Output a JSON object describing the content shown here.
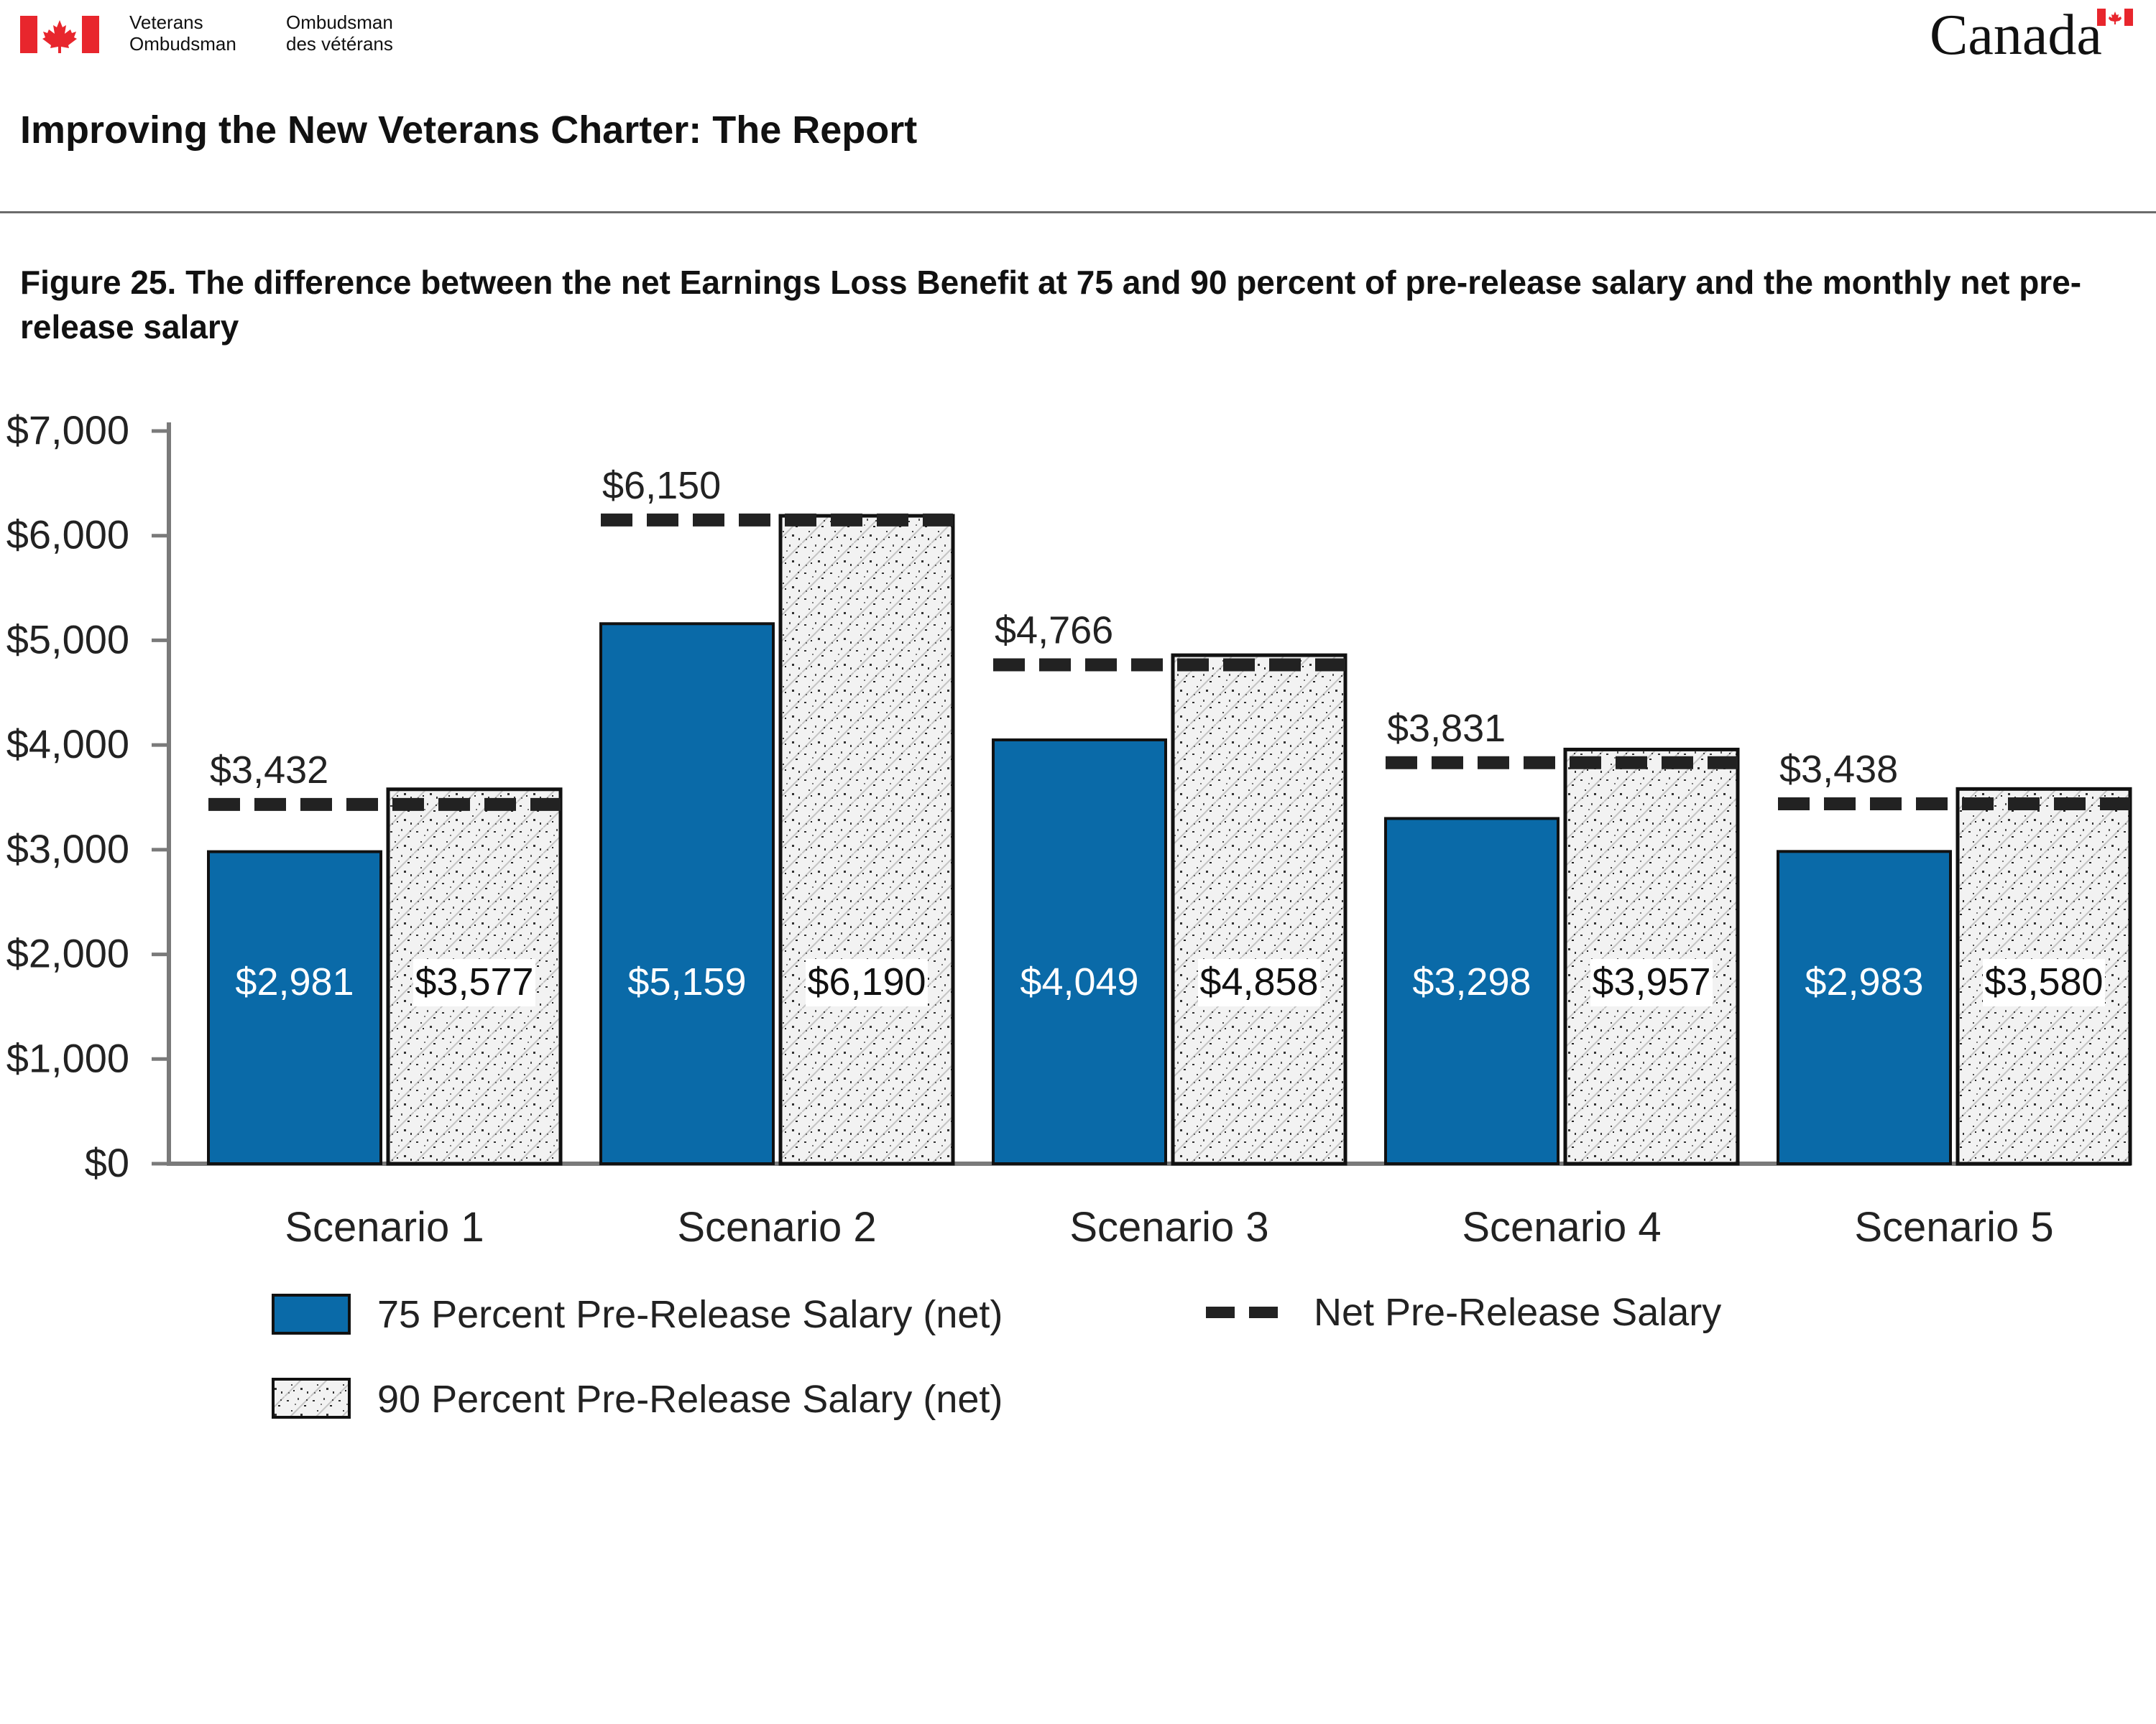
{
  "header": {
    "org_en_line1": "Veterans",
    "org_en_line2": "Ombudsman",
    "org_fr_line1": "Ombudsman",
    "org_fr_line2": "des vétérans",
    "wordmark": "Canada",
    "report_title": "Improving the New Veterans Charter: The Report"
  },
  "figure": {
    "title": "Figure 25. The difference between the net Earnings Loss Benefit at 75 and 90 percent of pre-release salary and the monthly net pre-release salary"
  },
  "colors": {
    "flag_red": "#e8262d",
    "series_75": "#0a6aa8",
    "series_90_fill": "#f0f0f0",
    "net_line": "#222222",
    "axis": "#7a7a7a"
  },
  "chart_data": {
    "type": "bar",
    "categories": [
      "Scenario 1",
      "Scenario 2",
      "Scenario 3",
      "Scenario 4",
      "Scenario 5"
    ],
    "series": [
      {
        "name": "75 Percent Pre-Release Salary (net)",
        "values": [
          2981,
          5159,
          4049,
          3298,
          2983
        ],
        "value_labels": [
          "$2,981",
          "$5,159",
          "$4,049",
          "$3,298",
          "$2,983"
        ]
      },
      {
        "name": "90 Percent Pre-Release Salary (net)",
        "values": [
          3577,
          6190,
          4858,
          3957,
          3580
        ],
        "value_labels": [
          "$3,577",
          "$6,190",
          "$4,858",
          "$3,957",
          "$3,580"
        ]
      }
    ],
    "net_line": {
      "name": "Net Pre-Release Salary",
      "values": [
        3432,
        6150,
        4766,
        3831,
        3438
      ],
      "value_labels": [
        "$3,432",
        "$6,150",
        "$4,766",
        "$3,831",
        "$3,438"
      ]
    },
    "ylim": [
      0,
      7000
    ],
    "yticks": [
      0,
      1000,
      2000,
      3000,
      4000,
      5000,
      6000,
      7000
    ],
    "ytick_labels": [
      "$0",
      "$1,000",
      "$2,000",
      "$3,000",
      "$4,000",
      "$5,000",
      "$6,000",
      "$7,000"
    ],
    "xlabel": "",
    "ylabel": "",
    "grid": false,
    "legend_position": "bottom"
  }
}
